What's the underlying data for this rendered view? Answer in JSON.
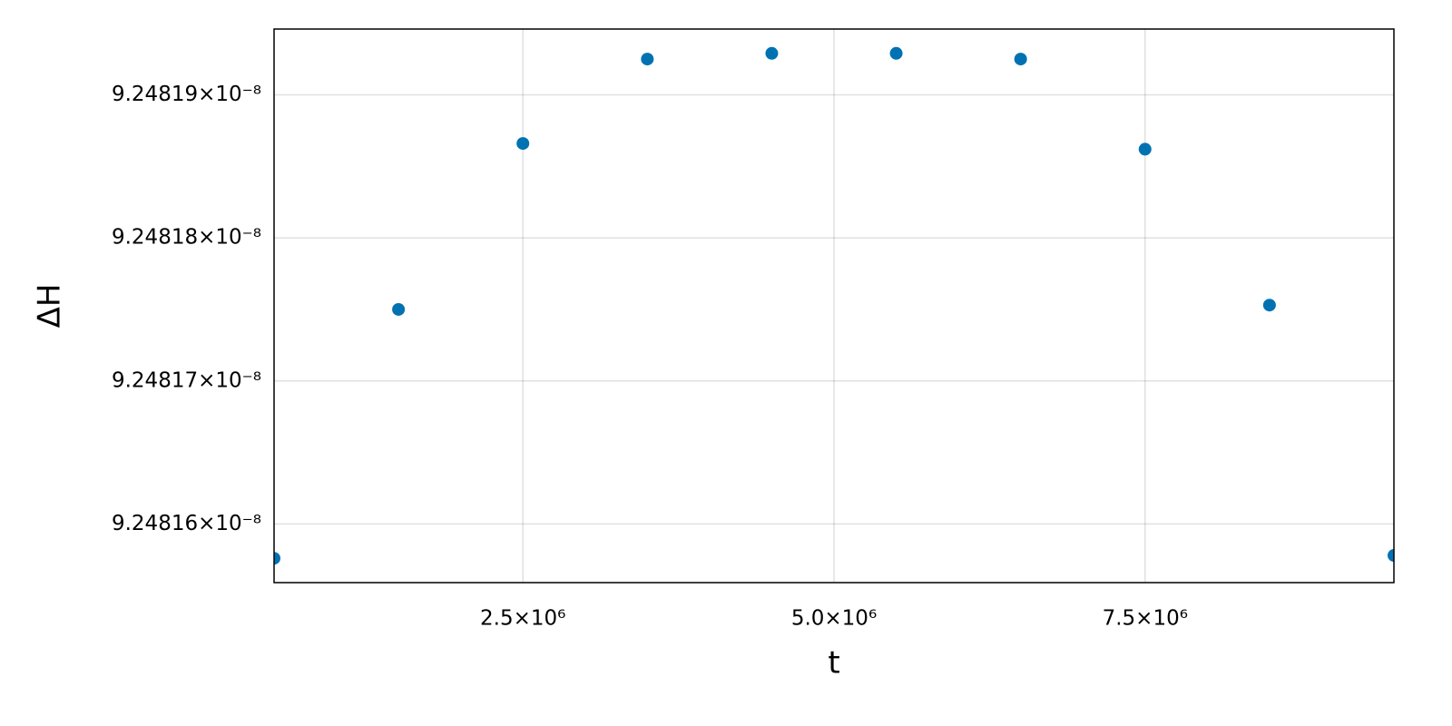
{
  "chart_data": {
    "type": "scatter",
    "x_label": "t",
    "y_label": "ΔH",
    "x": [
      500000,
      1500000,
      2500000,
      3500000,
      4500000,
      5500000,
      6500000,
      7500000,
      8500000,
      9500000
    ],
    "series": [
      {
        "color": "#0072b2",
        "values": [
          9.2481576e-08,
          9.248175e-08,
          9.2481866e-08,
          9.2481925e-08,
          9.2481929e-08,
          9.2481929e-08,
          9.2481925e-08,
          9.2481862e-08,
          9.2481753e-08,
          9.2481578e-08
        ]
      }
    ],
    "xlim": [
      500000,
      9500000
    ],
    "ylim": [
      9.2481559e-08,
      9.2481946e-08
    ],
    "xticks": [
      {
        "value": 2500000,
        "label": "2.5×10⁶"
      },
      {
        "value": 5000000,
        "label": "5.0×10⁶"
      },
      {
        "value": 7500000,
        "label": "7.5×10⁶"
      }
    ],
    "yticks": [
      {
        "value": 9.24816e-08,
        "label": "9.24816×10⁻⁸"
      },
      {
        "value": 9.24817e-08,
        "label": "9.24817×10⁻⁸"
      },
      {
        "value": 9.24818e-08,
        "label": "9.24818×10⁻⁸"
      },
      {
        "value": 9.24819e-08,
        "label": "9.24819×10⁻⁸"
      }
    ],
    "grid": true
  }
}
